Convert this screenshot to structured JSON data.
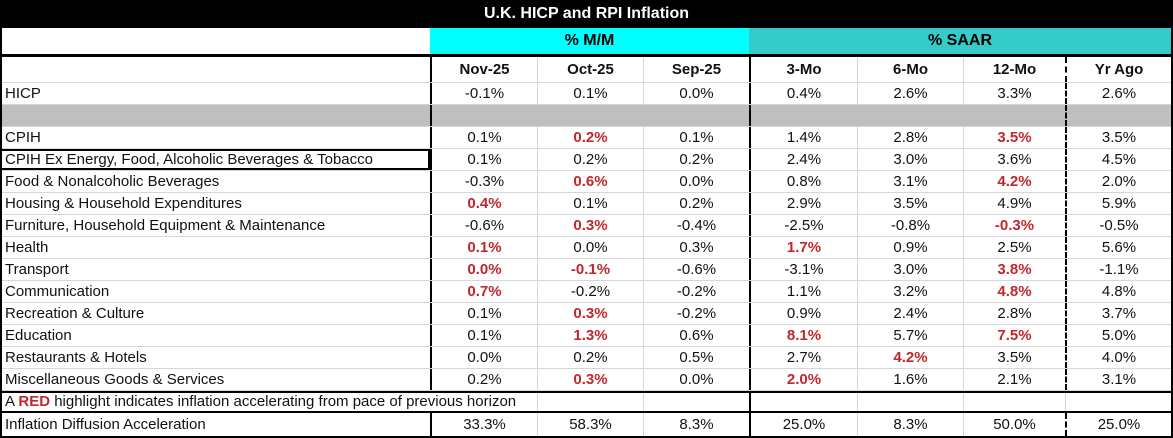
{
  "chart_data": {
    "type": "table",
    "title": "U.K. HICP and RPI Inflation",
    "band_headers": {
      "mm": "% M/M",
      "saar": "% SAAR"
    },
    "columns": [
      "Nov-25",
      "Oct-25",
      "Sep-25",
      "3-Mo",
      "6-Mo",
      "12-Mo",
      "Yr Ago"
    ],
    "rows": [
      {
        "label": "HICP",
        "cells": [
          "-0.1%",
          "0.1%",
          "0.0%",
          "0.4%",
          "2.6%",
          "3.3%",
          "2.6%"
        ],
        "red": [
          0,
          0,
          0,
          0,
          0,
          0,
          0
        ]
      },
      {
        "label": "CPIH",
        "cells": [
          "0.1%",
          "0.2%",
          "0.1%",
          "1.4%",
          "2.8%",
          "3.5%",
          "3.5%"
        ],
        "red": [
          0,
          1,
          0,
          0,
          0,
          1,
          0
        ]
      },
      {
        "label": "CPIH Ex Energy, Food, Alcoholic Beverages & Tobacco",
        "boxed": true,
        "cells": [
          "0.1%",
          "0.2%",
          "0.2%",
          "2.4%",
          "3.0%",
          "3.6%",
          "4.5%"
        ],
        "red": [
          0,
          0,
          0,
          0,
          0,
          0,
          0
        ]
      },
      {
        "label": "Food & Nonalcoholic Beverages",
        "cells": [
          "-0.3%",
          "0.6%",
          "0.0%",
          "0.8%",
          "3.1%",
          "4.2%",
          "2.0%"
        ],
        "red": [
          0,
          1,
          0,
          0,
          0,
          1,
          0
        ]
      },
      {
        "label": "Housing & Household Expenditures",
        "cells": [
          "0.4%",
          "0.1%",
          "0.2%",
          "2.9%",
          "3.5%",
          "4.9%",
          "5.9%"
        ],
        "red": [
          1,
          0,
          0,
          0,
          0,
          0,
          0
        ]
      },
      {
        "label": "Furniture, Household Equipment & Maintenance",
        "cells": [
          "-0.6%",
          "0.3%",
          "-0.4%",
          "-2.5%",
          "-0.8%",
          "-0.3%",
          "-0.5%"
        ],
        "red": [
          0,
          1,
          0,
          0,
          0,
          1,
          0
        ]
      },
      {
        "label": "Health",
        "cells": [
          "0.1%",
          "0.0%",
          "0.3%",
          "1.7%",
          "0.9%",
          "2.5%",
          "5.6%"
        ],
        "red": [
          1,
          0,
          0,
          1,
          0,
          0,
          0
        ]
      },
      {
        "label": "Transport",
        "cells": [
          "0.0%",
          "-0.1%",
          "-0.6%",
          "-3.1%",
          "3.0%",
          "3.8%",
          "-1.1%"
        ],
        "red": [
          1,
          1,
          0,
          0,
          0,
          1,
          0
        ]
      },
      {
        "label": "Communication",
        "cells": [
          "0.7%",
          "-0.2%",
          "-0.2%",
          "1.1%",
          "3.2%",
          "4.8%",
          "4.8%"
        ],
        "red": [
          1,
          0,
          0,
          0,
          0,
          1,
          0
        ]
      },
      {
        "label": "Recreation & Culture",
        "cells": [
          "0.1%",
          "0.3%",
          "-0.2%",
          "0.9%",
          "2.4%",
          "2.8%",
          "3.7%"
        ],
        "red": [
          0,
          1,
          0,
          0,
          0,
          0,
          0
        ]
      },
      {
        "label": "Education",
        "cells": [
          "0.1%",
          "1.3%",
          "0.6%",
          "8.1%",
          "5.7%",
          "7.5%",
          "5.0%"
        ],
        "red": [
          0,
          1,
          0,
          1,
          0,
          1,
          0
        ]
      },
      {
        "label": "Restaurants & Hotels",
        "cells": [
          "0.0%",
          "0.2%",
          "0.5%",
          "2.7%",
          "4.2%",
          "3.5%",
          "4.0%"
        ],
        "red": [
          0,
          0,
          0,
          0,
          1,
          0,
          0
        ]
      },
      {
        "label": "Miscellaneous Goods & Services",
        "cells": [
          "0.2%",
          "0.3%",
          "0.0%",
          "2.0%",
          "1.6%",
          "2.1%",
          "3.1%"
        ],
        "red": [
          0,
          1,
          0,
          1,
          0,
          0,
          0
        ]
      }
    ],
    "note": {
      "prefix": "A ",
      "highlight": "RED",
      "suffix": " highlight indicates inflation accelerating from pace of previous horizon"
    },
    "summary_row": {
      "label": "Inflation Diffusion Acceleration",
      "cells": [
        "33.3%",
        "58.3%",
        "8.3%",
        "25.0%",
        "8.3%",
        "50.0%",
        "25.0%"
      ]
    },
    "colors": {
      "mm_band": "#00FFFF",
      "saar_band": "#35CBC8",
      "red_highlight": "#C1272D",
      "spacer_gray": "#BFBFBF"
    },
    "layout": {
      "grid": "on",
      "column_groups": [
        {
          "name": "% M/M",
          "columns": [
            "Nov-25",
            "Oct-25",
            "Sep-25"
          ]
        },
        {
          "name": "% SAAR",
          "columns": [
            "3-Mo",
            "6-Mo",
            "12-Mo"
          ]
        }
      ]
    }
  }
}
